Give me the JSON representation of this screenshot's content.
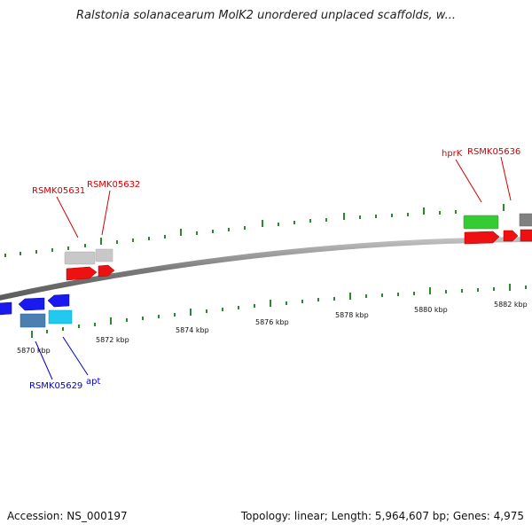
{
  "title": "Ralstonia solanacearum MolK2 unordered unplaced scaffolds, w...",
  "footer": {
    "accession": "Accession: NS_000197",
    "summary": "Topology: linear; Length: 5,964,607 bp; Genes: 4,975"
  },
  "ticks": {
    "labels": [
      "5870 kbp",
      "5872 kbp",
      "5874 kbp",
      "5876 kbp",
      "5878 kbp",
      "5880 kbp",
      "5882 kbp"
    ]
  },
  "gene_labels": [
    {
      "text": "RSMK05631",
      "color": "#d40000"
    },
    {
      "text": "RSMK05632",
      "color": "#d40000"
    },
    {
      "text": "hprK",
      "color": "#d40000"
    },
    {
      "text": "RSMK05636",
      "color": "#d40000"
    },
    {
      "text": "RSMK05629",
      "color": "#0000cc"
    },
    {
      "text": "apt",
      "color": "#0000cc"
    }
  ],
  "colors": {
    "forward_cds": "#ee1111",
    "forward_gene": "#c8c8c8",
    "hprk_gene": "#33cc33",
    "reverse_cds": "#1a1aee",
    "reverse_gene": "#4a7fb0",
    "apt_gene": "#22c8ee",
    "dark_gene": "#808080",
    "backbone": "#888888",
    "tick": "#2a8a2a"
  }
}
